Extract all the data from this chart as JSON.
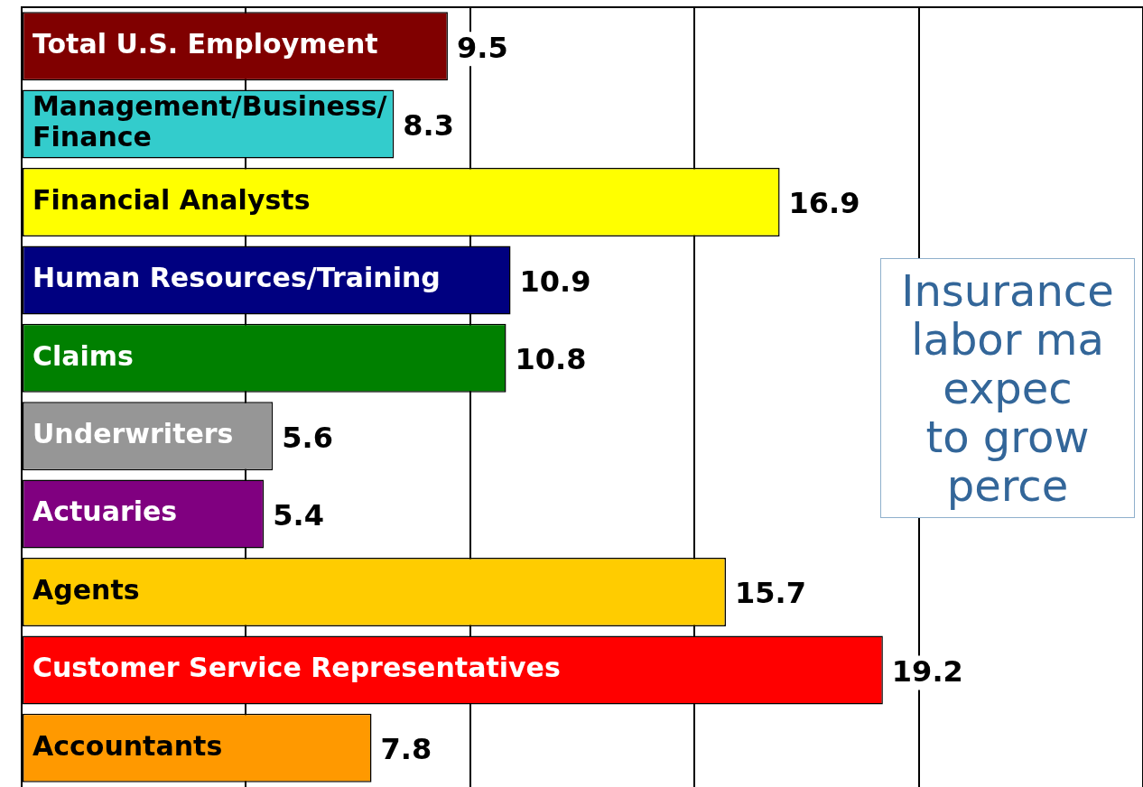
{
  "chart_data": {
    "type": "bar",
    "orientation": "horizontal",
    "categories": [
      "Total U.S. Employment",
      "Management/Business/Finance",
      "Financial Analysts",
      "Human Resources/Training",
      "Claims",
      "Underwriters",
      "Actuaries",
      "Agents",
      "Customer Service Representatives",
      "Accountants"
    ],
    "values": [
      9.5,
      8.3,
      16.9,
      10.9,
      10.8,
      5.6,
      5.4,
      15.7,
      19.2,
      7.8
    ],
    "colors": [
      "#800000",
      "#33cccc",
      "#ffff00",
      "#000080",
      "#008000",
      "#969696",
      "#800080",
      "#ffcc00",
      "#ff0000",
      "#ff9900"
    ],
    "grid": "x",
    "tick_labels": false,
    "data_labels": true,
    "annotations": [
      "Insurance\nlabor ma\nexpec\nto grow\nperce"
    ]
  }
}
